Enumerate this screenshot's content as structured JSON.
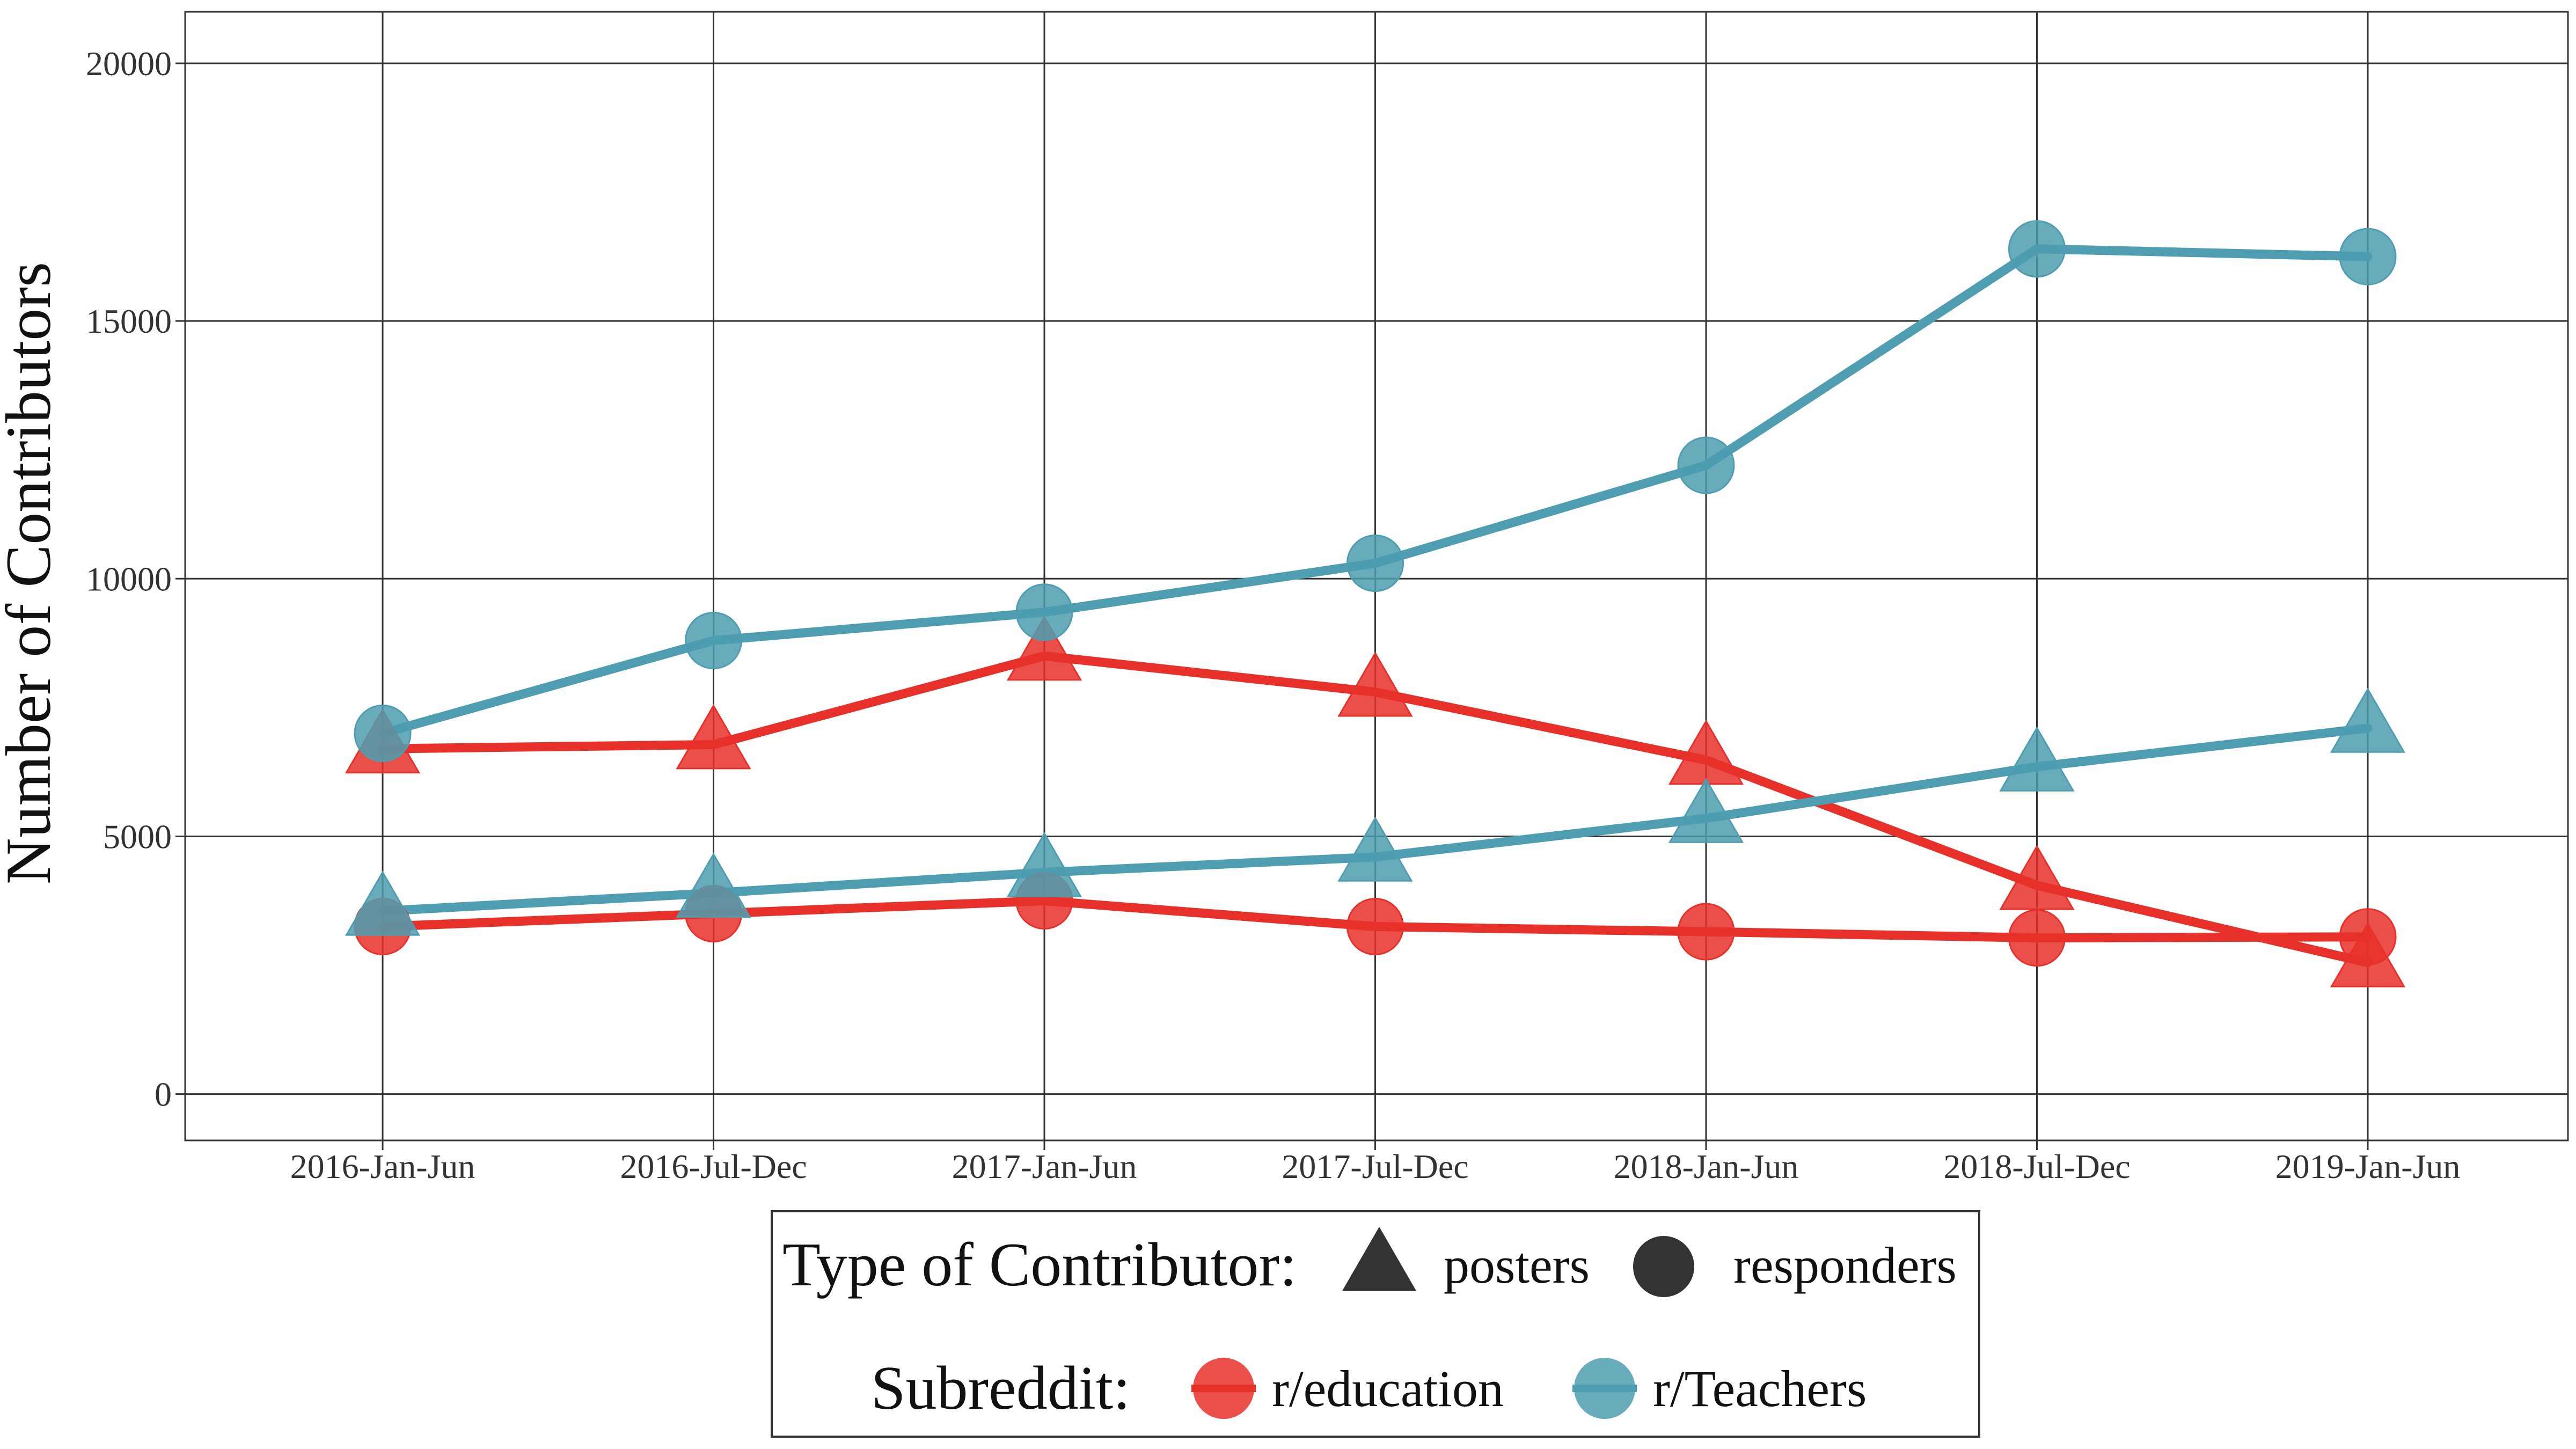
{
  "chart_data": {
    "type": "line",
    "title": "",
    "xlabel": "",
    "ylabel": "Number of Contributors",
    "ylim": [
      -900,
      21000
    ],
    "yticks": [
      0,
      5000,
      10000,
      15000,
      20000
    ],
    "grid": true,
    "legend_position": "bottom",
    "categories": [
      "2016-Jan-Jun",
      "2016-Jul-Dec",
      "2017-Jan-Jun",
      "2017-Jul-Dec",
      "2018-Jan-Jun",
      "2018-Jul-Dec",
      "2019-Jan-Jun"
    ],
    "series": [
      {
        "subreddit": "r/education",
        "type": "posters",
        "color": "#E8302A",
        "marker": "triangle",
        "values": [
          6700,
          6780,
          8500,
          7800,
          6480,
          4050,
          2550
        ]
      },
      {
        "subreddit": "r/education",
        "type": "responders",
        "color": "#E8302A",
        "marker": "circle",
        "values": [
          3250,
          3500,
          3750,
          3250,
          3150,
          3030,
          3050
        ]
      },
      {
        "subreddit": "r/Teachers",
        "type": "posters",
        "color": "#4E9DB0",
        "marker": "triangle",
        "values": [
          3550,
          3900,
          4300,
          4600,
          5350,
          6350,
          7100
        ]
      },
      {
        "subreddit": "r/Teachers",
        "type": "responders",
        "color": "#4E9DB0",
        "marker": "circle",
        "values": [
          7000,
          8800,
          9350,
          10300,
          12200,
          16400,
          16250
        ]
      }
    ],
    "legend": {
      "type_title": "Type of Contributor:",
      "type_items": [
        {
          "label": "posters",
          "marker": "triangle"
        },
        {
          "label": "responders",
          "marker": "circle"
        }
      ],
      "subreddit_title": "Subreddit:",
      "subreddit_items": [
        {
          "label": "r/education",
          "color": "#E8302A"
        },
        {
          "label": "r/Teachers",
          "color": "#4E9DB0"
        }
      ]
    }
  }
}
